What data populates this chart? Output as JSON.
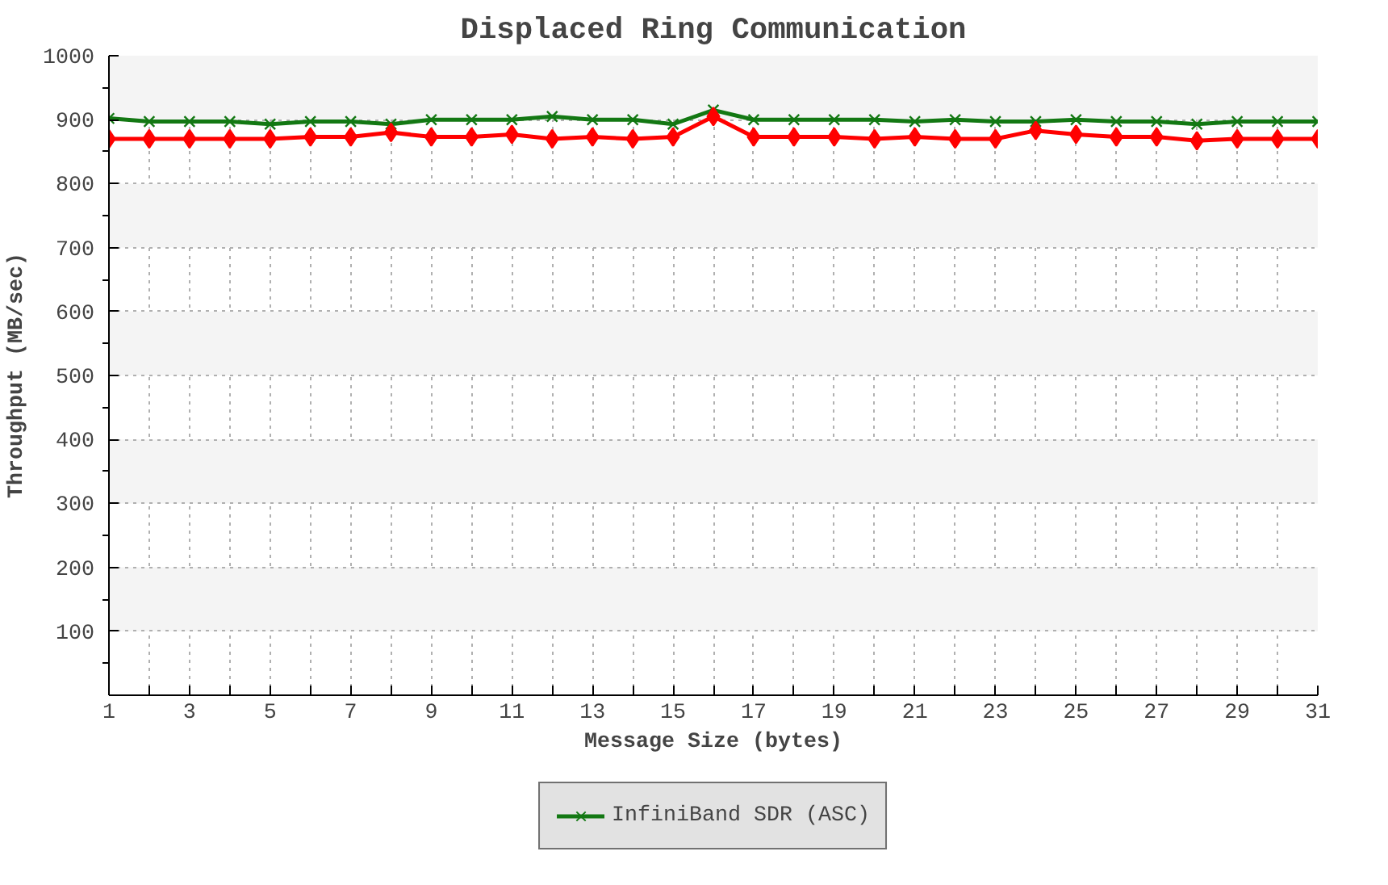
{
  "chart_data": {
    "type": "line",
    "title": "Displaced Ring Communication",
    "xlabel": "Message Size (bytes)",
    "ylabel": "Throughput (MB/sec)",
    "x": [
      1,
      2,
      3,
      4,
      5,
      6,
      7,
      8,
      9,
      10,
      11,
      12,
      13,
      14,
      15,
      16,
      17,
      18,
      19,
      20,
      21,
      22,
      23,
      24,
      25,
      26,
      27,
      28,
      29,
      30,
      31
    ],
    "series": [
      {
        "name": "InfiniBand SDR (ASC)",
        "color": "#137813",
        "marker": "cross",
        "values": [
          902,
          897,
          897,
          897,
          893,
          897,
          897,
          893,
          900,
          900,
          900,
          905,
          900,
          900,
          893,
          915,
          900,
          900,
          900,
          900,
          897,
          900,
          897,
          897,
          900,
          897,
          897,
          893,
          897,
          897,
          897
        ]
      },
      {
        "color": "#ff0000",
        "marker": "diamond",
        "values": [
          870,
          870,
          870,
          870,
          870,
          873,
          873,
          880,
          873,
          873,
          877,
          870,
          873,
          870,
          873,
          905,
          873,
          873,
          873,
          870,
          873,
          870,
          870,
          883,
          877,
          873,
          873,
          867,
          870,
          870,
          870
        ]
      }
    ],
    "xlim": [
      1,
      31
    ],
    "ylim": [
      0,
      1000
    ],
    "xticks": [
      1,
      {
        "value": 2,
        "label": null
      },
      3,
      {
        "value": 4,
        "label": null
      },
      5,
      {
        "value": 6,
        "label": null
      },
      7,
      {
        "value": 8,
        "label": null
      },
      9,
      {
        "value": 10,
        "label": null
      },
      11,
      {
        "value": 12,
        "label": null
      },
      13,
      {
        "value": 14,
        "label": null
      },
      15,
      {
        "value": 16,
        "label": null
      },
      17,
      {
        "value": 18,
        "label": null
      },
      19,
      {
        "value": 20,
        "label": null
      },
      21,
      {
        "value": 22,
        "label": null
      },
      23,
      {
        "value": 24,
        "label": null
      },
      25,
      {
        "value": 26,
        "label": null
      },
      27,
      {
        "value": 28,
        "label": null
      },
      29,
      {
        "value": 30,
        "label": null
      },
      31
    ],
    "yticks": [
      100,
      200,
      300,
      400,
      500,
      600,
      700,
      800,
      900,
      1000
    ],
    "grid": true,
    "legend": "bottom",
    "line_style": "solid"
  }
}
